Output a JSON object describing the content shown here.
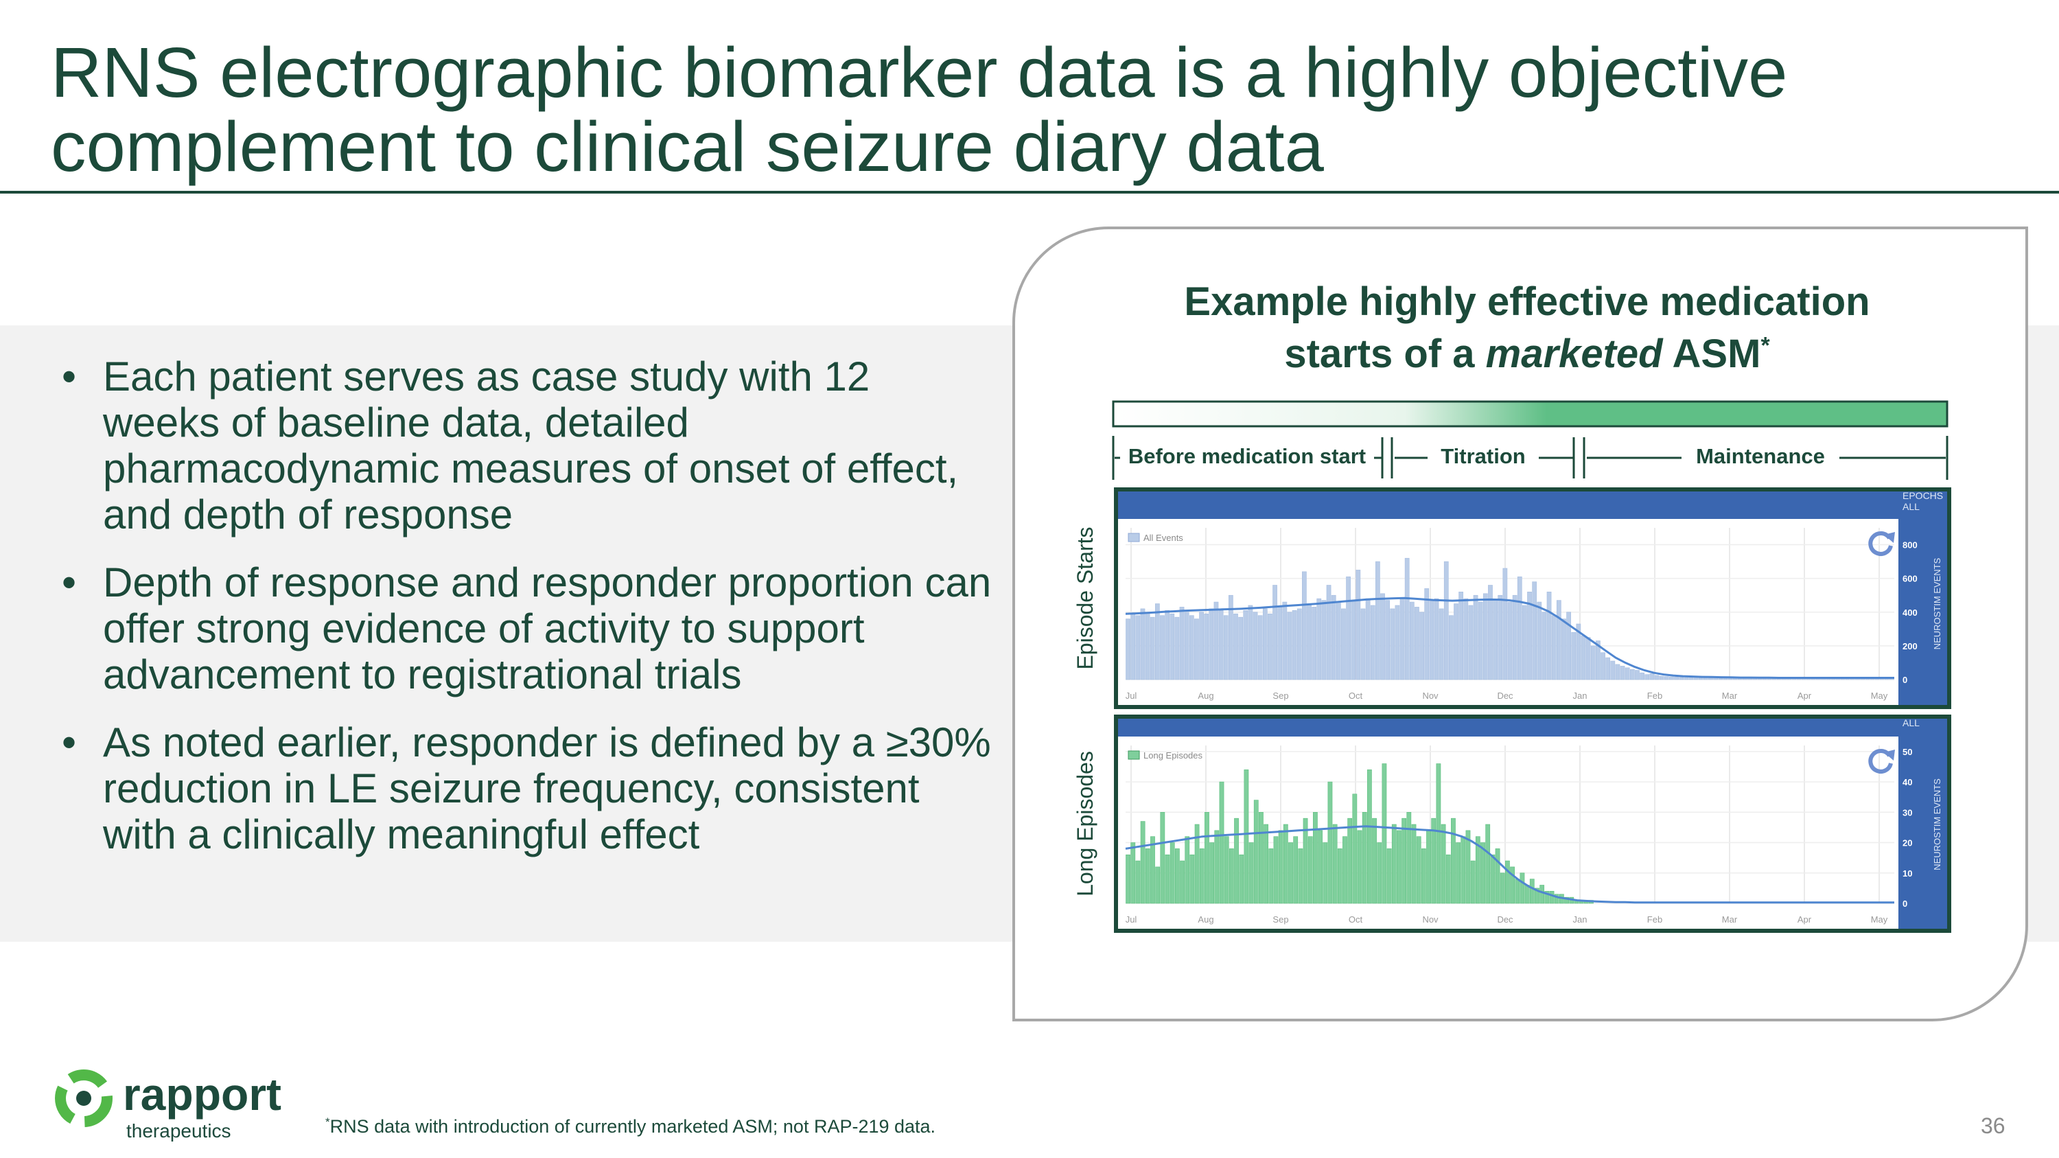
{
  "slide": {
    "title": "RNS electrographic biomarker data is a highly objective complement to clinical seizure diary data",
    "bullets": [
      "Each patient serves as case study with 12 weeks of baseline data, detailed pharmacodynamic measures of onset of effect, and depth of response",
      "Depth of response and responder proportion can offer strong evidence of activity to support advancement to registrational trials",
      "As noted earlier, responder is defined by a ≥30% reduction in LE seizure frequency, consistent with a clinically meaningful effect"
    ],
    "bullet_marker": "•",
    "chart_title_line1": "Example highly effective medication",
    "chart_title_line2_pre": "starts of a ",
    "chart_title_line2_ital": "marketed",
    "chart_title_line2_post": " ASM",
    "chart_title_sup": "*",
    "footnote_sup": "*",
    "footnote": "RNS data with introduction of currently marketed ASM; not RAP-219 data.",
    "page_number": "36",
    "logo": {
      "name": "rapport",
      "sub": "therapeutics"
    },
    "colors": {
      "dark_green": "#1c4a3a",
      "blue_header": "#3a66b0",
      "bar_blue": "#b9cce8",
      "line_blue": "#4f86d0",
      "bar_green": "#7fcf9c",
      "green_accent": "#5fbf86",
      "logo_green": "#52b848",
      "logo_dark": "#1d4a3c"
    }
  },
  "chart_data": [
    {
      "type": "bar",
      "ylabel": "Episode Starts",
      "legend": "All Events",
      "right_header": [
        "EPOCHS",
        "ALL"
      ],
      "right_axis_label": "NEUROSTIM EVENTS",
      "y_ticks": [
        "800",
        "600",
        "400",
        "200",
        "0"
      ],
      "ylim": [
        0,
        900
      ],
      "x_ticks": [
        "Jul",
        "Aug",
        "Sep",
        "Oct",
        "Nov",
        "Dec",
        "Jan",
        "Feb",
        "Mar",
        "Apr",
        "May"
      ],
      "phases": [
        "Before medication start",
        "Titration",
        "Maintenance"
      ],
      "series": [
        {
          "type": "bar",
          "values": [
            360,
            390,
            380,
            420,
            400,
            370,
            450,
            380,
            410,
            390,
            370,
            430,
            400,
            380,
            360,
            400,
            390,
            420,
            460,
            410,
            380,
            500,
            390,
            370,
            410,
            440,
            400,
            380,
            420,
            390,
            560,
            430,
            460,
            400,
            410,
            420,
            640,
            450,
            430,
            480,
            470,
            560,
            500,
            460,
            420,
            610,
            470,
            650,
            420,
            480,
            440,
            700,
            510,
            470,
            420,
            440,
            480,
            720,
            460,
            430,
            400,
            540,
            470,
            480,
            420,
            700,
            380,
            450,
            520,
            480,
            440,
            500,
            460,
            510,
            560,
            470,
            500,
            660,
            460,
            500,
            610,
            440,
            520,
            580,
            460,
            400,
            520,
            380,
            470,
            360,
            400,
            280,
            330,
            260,
            250,
            200,
            230,
            160,
            130,
            110,
            90,
            80,
            70,
            60,
            55,
            40,
            30,
            35,
            25,
            20,
            18,
            16,
            15,
            14,
            12,
            12,
            10,
            10,
            10,
            9,
            9,
            8,
            8,
            8,
            8,
            8,
            8,
            7,
            7,
            7,
            7,
            7,
            6,
            6,
            6,
            6,
            6,
            6,
            6,
            6,
            6,
            6,
            6,
            6,
            6,
            6,
            6,
            6,
            6,
            6,
            6,
            6,
            6,
            6,
            6,
            6,
            6
          ]
        },
        {
          "type": "line",
          "values": [
            390,
            392,
            395,
            398,
            402,
            405,
            408,
            410,
            412,
            414,
            416,
            418,
            420,
            423,
            426,
            430,
            434,
            438,
            442,
            446,
            450,
            455,
            460,
            465,
            470,
            475,
            478,
            480,
            482,
            484,
            480,
            476,
            472,
            470,
            468,
            470,
            472,
            474,
            475,
            474,
            470,
            462,
            450,
            430,
            405,
            370,
            330,
            290,
            250,
            210,
            170,
            130,
            100,
            75,
            55,
            40,
            30,
            24,
            20,
            18,
            16,
            15,
            14,
            13,
            12,
            12,
            11,
            11,
            10,
            10,
            10,
            10,
            10,
            10,
            10,
            10,
            10,
            10,
            10,
            10,
            10
          ]
        }
      ]
    },
    {
      "type": "bar",
      "ylabel": "Long Episodes",
      "legend": "Long Episodes",
      "right_header": [
        "ALL"
      ],
      "right_axis_label": "NEUROSTIM EVENTS",
      "y_ticks": [
        "50",
        "40",
        "30",
        "20",
        "10",
        "0"
      ],
      "ylim": [
        0,
        52
      ],
      "x_ticks": [
        "Jul",
        "Aug",
        "Sep",
        "Oct",
        "Nov",
        "Dec",
        "Jan",
        "Feb",
        "Mar",
        "Apr",
        "May"
      ],
      "series": [
        {
          "type": "bar",
          "values": [
            16,
            20,
            14,
            27,
            18,
            22,
            12,
            30,
            16,
            20,
            18,
            14,
            22,
            16,
            26,
            18,
            30,
            20,
            24,
            40,
            22,
            18,
            28,
            16,
            44,
            20,
            34,
            30,
            26,
            18,
            22,
            24,
            26,
            20,
            22,
            18,
            28,
            22,
            30,
            24,
            20,
            40,
            26,
            18,
            22,
            28,
            36,
            24,
            30,
            44,
            28,
            20,
            46,
            18,
            26,
            24,
            28,
            30,
            26,
            22,
            18,
            24,
            28,
            46,
            26,
            16,
            28,
            20,
            22,
            24,
            14,
            22,
            20,
            26,
            16,
            18,
            10,
            14,
            12,
            8,
            10,
            6,
            8,
            5,
            6,
            4,
            4,
            3,
            3,
            2,
            2,
            1,
            1,
            1,
            1,
            0,
            0,
            0,
            0,
            0,
            0,
            0,
            0,
            0,
            0,
            0,
            0,
            0,
            0,
            0,
            0,
            0,
            0,
            0,
            0,
            0,
            0,
            0,
            0,
            0,
            0,
            0,
            0,
            0,
            0,
            0,
            0,
            0,
            0,
            0,
            0,
            0,
            0,
            0,
            0,
            0,
            0,
            0,
            0,
            0,
            0,
            0,
            0,
            0,
            0,
            0,
            0,
            0,
            0,
            0,
            0,
            0,
            0,
            0,
            0,
            0
          ]
        },
        {
          "type": "line",
          "values": [
            18,
            18.5,
            19,
            19.5,
            20,
            20.5,
            21,
            21.5,
            22,
            22.2,
            22.4,
            22.6,
            22.8,
            23,
            23.2,
            23.4,
            23.6,
            23.8,
            24,
            24.2,
            24.4,
            24.6,
            24.8,
            25,
            25.2,
            25.4,
            25.2,
            25,
            24.8,
            24.6,
            24.4,
            24.2,
            24,
            23.6,
            23,
            22,
            20.5,
            18.5,
            16,
            13,
            10,
            7.5,
            5.5,
            4,
            3,
            2,
            1.5,
            1,
            0.8,
            0.6,
            0.5,
            0.4,
            0.4,
            0.3,
            0.3,
            0.3,
            0.3,
            0.3,
            0.3,
            0.3,
            0.3,
            0.3,
            0.3,
            0.3,
            0.3,
            0.3,
            0.3,
            0.3,
            0.3,
            0.3,
            0.3,
            0.3,
            0.3,
            0.3,
            0.3,
            0.3,
            0.3,
            0.3,
            0.3,
            0.3,
            0.3
          ]
        }
      ]
    }
  ]
}
